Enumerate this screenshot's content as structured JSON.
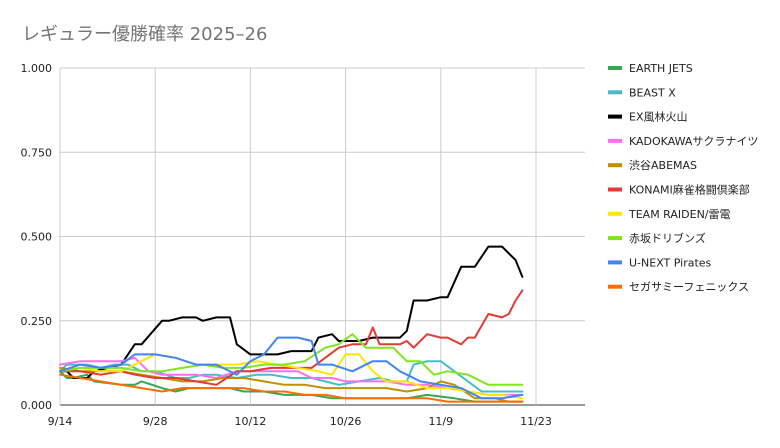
{
  "chart_data": {
    "type": "line",
    "title": "レギュラー優勝確率 2025–26",
    "xlabel": "",
    "ylabel": "",
    "x_ticks": [
      "9/14",
      "9/28",
      "10/12",
      "10/26",
      "11/9",
      "11/23"
    ],
    "y_ticks": [
      "0.000",
      "0.250",
      "0.500",
      "0.750",
      "1.000"
    ],
    "ylim": [
      0,
      1
    ],
    "grid": true,
    "legend_position": "right",
    "series": [
      {
        "name": "EARTH JETS",
        "color": "#34a853",
        "x": [
          "2025-09-14",
          "2025-09-15",
          "2025-09-16",
          "2025-09-18",
          "2025-09-19",
          "2025-09-23",
          "2025-09-25",
          "2025-09-26",
          "2025-09-29",
          "2025-10-01",
          "2025-10-03",
          "2025-10-07",
          "2025-10-09",
          "2025-10-11",
          "2025-10-14",
          "2025-10-17",
          "2025-10-21",
          "2025-10-24",
          "2025-10-28",
          "2025-10-31",
          "2025-11-04",
          "2025-11-07",
          "2025-11-11",
          "2025-11-14",
          "2025-11-16",
          "2025-11-18",
          "2025-11-21"
        ],
        "values": [
          0.1,
          0.08,
          0.08,
          0.09,
          0.07,
          0.06,
          0.06,
          0.07,
          0.05,
          0.04,
          0.05,
          0.05,
          0.05,
          0.04,
          0.04,
          0.03,
          0.03,
          0.02,
          0.02,
          0.02,
          0.02,
          0.03,
          0.02,
          0.01,
          0.01,
          0.01,
          0.01
        ]
      },
      {
        "name": "BEAST X",
        "color": "#46bdc6",
        "x": [
          "2025-09-14",
          "2025-09-15",
          "2025-09-16",
          "2025-09-18",
          "2025-09-20",
          "2025-09-22",
          "2025-09-24",
          "2025-09-26",
          "2025-09-28",
          "2025-10-01",
          "2025-10-03",
          "2025-10-05",
          "2025-10-07",
          "2025-10-10",
          "2025-10-13",
          "2025-10-15",
          "2025-10-18",
          "2025-10-21",
          "2025-10-23",
          "2025-10-25",
          "2025-10-28",
          "2025-10-31",
          "2025-11-02",
          "2025-11-04",
          "2025-11-05",
          "2025-11-07",
          "2025-11-09",
          "2025-11-11",
          "2025-11-13",
          "2025-11-15",
          "2025-11-18",
          "2025-11-20",
          "2025-11-21"
        ],
        "values": [
          0.1,
          0.12,
          0.12,
          0.12,
          0.11,
          0.12,
          0.12,
          0.1,
          0.1,
          0.08,
          0.08,
          0.09,
          0.09,
          0.08,
          0.09,
          0.09,
          0.08,
          0.08,
          0.07,
          0.06,
          0.07,
          0.08,
          0.07,
          0.07,
          0.12,
          0.13,
          0.13,
          0.1,
          0.07,
          0.04,
          0.04,
          0.04,
          0.04
        ]
      },
      {
        "name": "EX風林火山",
        "color": "#000000",
        "x": [
          "2025-09-14",
          "2025-09-15",
          "2025-09-16",
          "2025-09-18",
          "2025-09-19",
          "2025-09-21",
          "2025-09-23",
          "2025-09-25",
          "2025-09-26",
          "2025-09-29",
          "2025-09-30",
          "2025-10-02",
          "2025-10-04",
          "2025-10-05",
          "2025-10-07",
          "2025-10-09",
          "2025-10-10",
          "2025-10-12",
          "2025-10-14",
          "2025-10-16",
          "2025-10-18",
          "2025-10-21",
          "2025-10-22",
          "2025-10-24",
          "2025-10-25",
          "2025-10-28",
          "2025-10-30",
          "2025-10-31",
          "2025-11-03",
          "2025-11-04",
          "2025-11-05",
          "2025-11-07",
          "2025-11-09",
          "2025-11-10",
          "2025-11-12",
          "2025-11-14",
          "2025-11-16",
          "2025-11-18",
          "2025-11-20",
          "2025-11-21"
        ],
        "values": [
          0.1,
          0.1,
          0.08,
          0.08,
          0.1,
          0.11,
          0.12,
          0.18,
          0.18,
          0.25,
          0.25,
          0.26,
          0.26,
          0.25,
          0.26,
          0.26,
          0.18,
          0.15,
          0.15,
          0.15,
          0.16,
          0.16,
          0.2,
          0.21,
          0.19,
          0.19,
          0.2,
          0.2,
          0.2,
          0.22,
          0.31,
          0.31,
          0.32,
          0.32,
          0.41,
          0.41,
          0.47,
          0.47,
          0.43,
          0.38
        ]
      },
      {
        "name": "KADOKAWAサクラナイツ",
        "color": "#ff6ef5",
        "x": [
          "2025-09-14",
          "2025-09-17",
          "2025-09-20",
          "2025-09-23",
          "2025-09-25",
          "2025-09-27",
          "2025-09-29",
          "2025-10-01",
          "2025-10-04",
          "2025-10-07",
          "2025-10-10",
          "2025-10-13",
          "2025-10-16",
          "2025-10-19",
          "2025-10-21",
          "2025-10-24",
          "2025-10-26",
          "2025-10-29",
          "2025-11-01",
          "2025-11-04",
          "2025-11-07",
          "2025-11-10",
          "2025-11-13",
          "2025-11-16",
          "2025-11-18",
          "2025-11-21"
        ],
        "values": [
          0.12,
          0.13,
          0.13,
          0.13,
          0.14,
          0.1,
          0.09,
          0.09,
          0.09,
          0.08,
          0.1,
          0.1,
          0.1,
          0.1,
          0.08,
          0.08,
          0.07,
          0.07,
          0.07,
          0.06,
          0.06,
          0.05,
          0.04,
          0.03,
          0.03,
          0.03
        ]
      },
      {
        "name": "渋谷ABEMAS",
        "color": "#bf9000",
        "x": [
          "2025-09-14",
          "2025-09-17",
          "2025-09-20",
          "2025-09-23",
          "2025-09-26",
          "2025-09-29",
          "2025-10-02",
          "2025-10-05",
          "2025-10-08",
          "2025-10-11",
          "2025-10-14",
          "2025-10-17",
          "2025-10-20",
          "2025-10-23",
          "2025-10-26",
          "2025-10-29",
          "2025-11-01",
          "2025-11-04",
          "2025-11-07",
          "2025-11-09",
          "2025-11-11",
          "2025-11-14",
          "2025-11-17",
          "2025-11-19",
          "2025-11-21"
        ],
        "values": [
          0.11,
          0.1,
          0.1,
          0.1,
          0.09,
          0.08,
          0.07,
          0.07,
          0.08,
          0.08,
          0.07,
          0.06,
          0.06,
          0.05,
          0.05,
          0.05,
          0.05,
          0.04,
          0.05,
          0.07,
          0.06,
          0.02,
          0.02,
          0.01,
          0.01
        ]
      },
      {
        "name": "KONAMI麻雀格闘倶楽部",
        "color": "#e53935",
        "x": [
          "2025-09-14",
          "2025-09-17",
          "2025-09-20",
          "2025-09-23",
          "2025-09-25",
          "2025-09-28",
          "2025-10-01",
          "2025-10-04",
          "2025-10-07",
          "2025-10-10",
          "2025-10-12",
          "2025-10-15",
          "2025-10-18",
          "2025-10-21",
          "2025-10-23",
          "2025-10-25",
          "2025-10-27",
          "2025-10-29",
          "2025-10-30",
          "2025-10-31",
          "2025-11-03",
          "2025-11-04",
          "2025-11-05",
          "2025-11-07",
          "2025-11-09",
          "2025-11-10",
          "2025-11-12",
          "2025-11-13",
          "2025-11-14",
          "2025-11-16",
          "2025-11-18",
          "2025-11-19",
          "2025-11-20",
          "2025-11-21"
        ],
        "values": [
          0.1,
          0.1,
          0.09,
          0.1,
          0.09,
          0.08,
          0.08,
          0.07,
          0.06,
          0.1,
          0.1,
          0.11,
          0.11,
          0.11,
          0.14,
          0.17,
          0.18,
          0.18,
          0.23,
          0.18,
          0.18,
          0.19,
          0.17,
          0.21,
          0.2,
          0.2,
          0.18,
          0.2,
          0.2,
          0.27,
          0.26,
          0.27,
          0.31,
          0.34
        ]
      },
      {
        "name": "TEAM RAIDEN/雷電",
        "color": "#ffe600",
        "x": [
          "2025-09-14",
          "2025-09-17",
          "2025-09-20",
          "2025-09-23",
          "2025-09-26",
          "2025-09-28",
          "2025-10-01",
          "2025-10-04",
          "2025-10-07",
          "2025-10-10",
          "2025-10-13",
          "2025-10-16",
          "2025-10-19",
          "2025-10-22",
          "2025-10-24",
          "2025-10-26",
          "2025-10-28",
          "2025-10-30",
          "2025-11-01",
          "2025-11-04",
          "2025-11-07",
          "2025-11-10",
          "2025-11-13",
          "2025-11-16",
          "2025-11-18",
          "2025-11-21"
        ],
        "values": [
          0.1,
          0.11,
          0.1,
          0.1,
          0.13,
          0.15,
          0.14,
          0.12,
          0.12,
          0.12,
          0.13,
          0.12,
          0.11,
          0.1,
          0.09,
          0.15,
          0.15,
          0.1,
          0.07,
          0.07,
          0.05,
          0.05,
          0.04,
          0.03,
          0.03,
          0.02
        ]
      },
      {
        "name": "赤坂ドリブンズ",
        "color": "#7fe51e",
        "x": [
          "2025-09-14",
          "2025-09-17",
          "2025-09-20",
          "2025-09-23",
          "2025-09-26",
          "2025-09-29",
          "2025-10-02",
          "2025-10-05",
          "2025-10-08",
          "2025-10-11",
          "2025-10-14",
          "2025-10-17",
          "2025-10-20",
          "2025-10-23",
          "2025-10-25",
          "2025-10-27",
          "2025-10-29",
          "2025-10-31",
          "2025-11-02",
          "2025-11-04",
          "2025-11-06",
          "2025-11-08",
          "2025-11-10",
          "2025-11-13",
          "2025-11-16",
          "2025-11-18",
          "2025-11-21"
        ],
        "values": [
          0.1,
          0.11,
          0.11,
          0.11,
          0.1,
          0.1,
          0.11,
          0.12,
          0.11,
          0.11,
          0.12,
          0.12,
          0.13,
          0.17,
          0.18,
          0.21,
          0.17,
          0.17,
          0.17,
          0.13,
          0.13,
          0.09,
          0.1,
          0.09,
          0.06,
          0.06,
          0.06
        ]
      },
      {
        "name": "U-NEXT Pirates",
        "color": "#4285f4",
        "x": [
          "2025-09-14",
          "2025-09-17",
          "2025-09-20",
          "2025-09-23",
          "2025-09-25",
          "2025-09-28",
          "2025-10-01",
          "2025-10-04",
          "2025-10-07",
          "2025-10-10",
          "2025-10-12",
          "2025-10-14",
          "2025-10-16",
          "2025-10-19",
          "2025-10-21",
          "2025-10-22",
          "2025-10-24",
          "2025-10-27",
          "2025-10-30",
          "2025-11-01",
          "2025-11-03",
          "2025-11-06",
          "2025-11-09",
          "2025-11-12",
          "2025-11-15",
          "2025-11-18",
          "2025-11-21"
        ],
        "values": [
          0.1,
          0.12,
          0.11,
          0.12,
          0.15,
          0.15,
          0.14,
          0.12,
          0.12,
          0.09,
          0.13,
          0.15,
          0.2,
          0.2,
          0.19,
          0.12,
          0.12,
          0.1,
          0.13,
          0.13,
          0.1,
          0.07,
          0.06,
          0.05,
          0.02,
          0.02,
          0.03
        ]
      },
      {
        "name": "セガサミーフェニックス",
        "color": "#ff6d01",
        "x": [
          "2025-09-14",
          "2025-09-17",
          "2025-09-20",
          "2025-09-23",
          "2025-09-26",
          "2025-09-29",
          "2025-10-02",
          "2025-10-05",
          "2025-10-08",
          "2025-10-11",
          "2025-10-14",
          "2025-10-17",
          "2025-10-20",
          "2025-10-23",
          "2025-10-26",
          "2025-10-29",
          "2025-11-01",
          "2025-11-04",
          "2025-11-07",
          "2025-11-10",
          "2025-11-13",
          "2025-11-16",
          "2025-11-19",
          "2025-11-21"
        ],
        "values": [
          0.09,
          0.08,
          0.07,
          0.06,
          0.05,
          0.04,
          0.05,
          0.05,
          0.05,
          0.05,
          0.04,
          0.04,
          0.03,
          0.03,
          0.02,
          0.02,
          0.02,
          0.02,
          0.02,
          0.01,
          0.01,
          0.01,
          0.01,
          0.01
        ]
      }
    ]
  }
}
